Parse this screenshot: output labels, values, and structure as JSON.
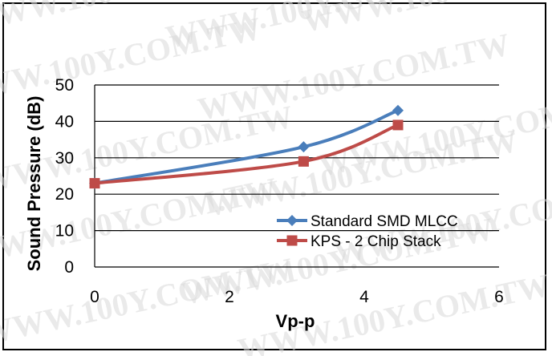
{
  "watermark": "WWW.100Y.COM.TW",
  "chart_data": {
    "type": "line",
    "title": "",
    "xlabel": "Vp-p",
    "ylabel": "Sound Pressure (dB)",
    "xlim": [
      0,
      6
    ],
    "ylim": [
      0,
      50
    ],
    "xticks": [
      "0",
      "2",
      "4",
      "6"
    ],
    "yticks": [
      "0",
      "10",
      "20",
      "30",
      "40",
      "50"
    ],
    "grid": "horizontal",
    "legend_position": "bottom-right-inside",
    "series": [
      {
        "name": "Standard SMD MLCC",
        "color": "#4a7ebb",
        "marker": "diamond",
        "points": [
          [
            0,
            23
          ],
          [
            3.1,
            33
          ],
          [
            4.5,
            43
          ]
        ]
      },
      {
        "name": "KPS - 2 Chip Stack",
        "color": "#be4b48",
        "marker": "square",
        "points": [
          [
            0,
            23
          ],
          [
            3.1,
            29
          ],
          [
            4.5,
            39
          ]
        ]
      }
    ]
  }
}
